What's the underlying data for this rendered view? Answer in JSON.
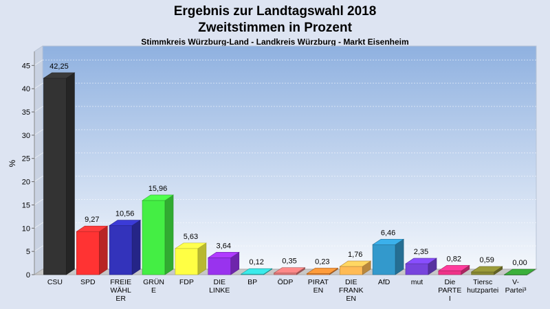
{
  "chart_data": {
    "type": "bar",
    "title": "Ergebnis zur Landtagswahl 2018",
    "subtitle": "Zweitstimmen in Prozent",
    "caption": "Stimmkreis Würzburg-Land - Landkreis Würzburg - Markt Eisenheim",
    "ylabel": "%",
    "ylim": [
      0,
      48
    ],
    "yticks": [
      0,
      5,
      10,
      15,
      20,
      25,
      30,
      35,
      40,
      45
    ],
    "grid": true,
    "categories": [
      [
        "CSU"
      ],
      [
        "SPD"
      ],
      [
        "FREIE",
        "WÄHL",
        "ER"
      ],
      [
        "GRÜN",
        "E"
      ],
      [
        "FDP"
      ],
      [
        "DIE",
        "LINKE"
      ],
      [
        "BP"
      ],
      [
        "ÖDP"
      ],
      [
        "PIRAT",
        "EN"
      ],
      [
        "DIE",
        "FRANK",
        "EN"
      ],
      [
        "AfD"
      ],
      [
        "mut"
      ],
      [
        "Die",
        "PARTE",
        "I"
      ],
      [
        "Tiersc",
        "hutzpartei"
      ],
      [
        "V-",
        "Partei³"
      ]
    ],
    "values": [
      42.25,
      9.27,
      10.56,
      15.96,
      5.63,
      3.64,
      0.12,
      0.35,
      0.23,
      1.76,
      6.46,
      2.35,
      0.82,
      0.59,
      0.0
    ],
    "value_labels": [
      "42,25",
      "9,27",
      "10,56",
      "15,96",
      "5,63",
      "3,64",
      "0,12",
      "0,35",
      "0,23",
      "1,76",
      "6,46",
      "2,35",
      "0,82",
      "0,59",
      "0,00"
    ],
    "colors": [
      "#333333",
      "#ff3333",
      "#3333bb",
      "#44ee44",
      "#ffff44",
      "#9933ee",
      "#33cccc",
      "#dd7777",
      "#ee8833",
      "#ffbb55",
      "#3399cc",
      "#7744dd",
      "#ee3388",
      "#888833",
      "#339933"
    ]
  }
}
